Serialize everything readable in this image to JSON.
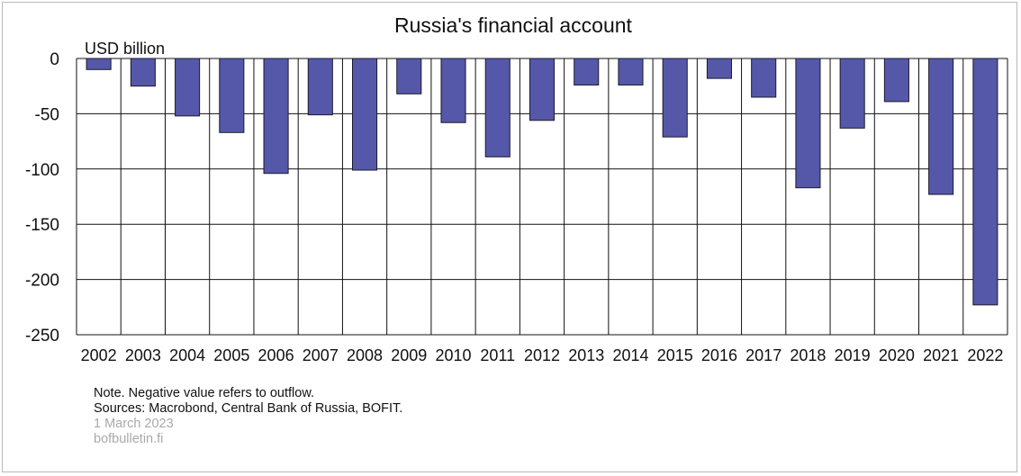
{
  "chart_data": {
    "type": "bar",
    "title": "Russia's financial account",
    "ylabel": "USD billion",
    "xlabel": "",
    "categories": [
      "2002",
      "2003",
      "2004",
      "2005",
      "2006",
      "2007",
      "2008",
      "2009",
      "2010",
      "2011",
      "2012",
      "2013",
      "2014",
      "2015",
      "2016",
      "2017",
      "2018",
      "2019",
      "2020",
      "2021",
      "2022"
    ],
    "values": [
      -10,
      -25,
      -52,
      -67,
      -104,
      -51,
      -101,
      -32,
      -58,
      -89,
      -56,
      -24,
      -24,
      -71,
      -18,
      -35,
      -117,
      -63,
      -39,
      -123,
      -223
    ],
    "ylim": [
      -250,
      0
    ],
    "yticks": [
      0,
      -50,
      -100,
      -150,
      -200,
      -250
    ],
    "ytick_labels": [
      "0",
      "-50",
      "-100",
      "-150",
      "-200",
      "-250"
    ],
    "grid": true,
    "bar_color": "#5558a8",
    "bar_edge_color": "#1a1a2e",
    "legend": "none"
  },
  "footer": {
    "note": "Note. Negative value refers to outflow.",
    "sources": "Sources: Macrobond, Central Bank of Russia, BOFIT.",
    "date": "1 March 2023",
    "site": "bofbulletin.fi"
  }
}
